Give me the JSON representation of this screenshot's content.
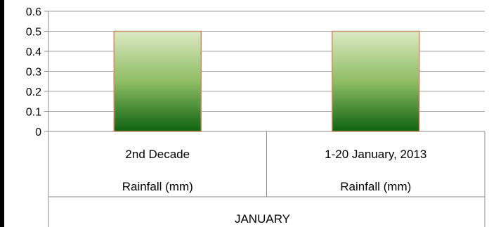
{
  "chart_data": {
    "type": "bar",
    "categories": [
      {
        "label": "2nd Decade",
        "sublabel": "Rainfall (mm)"
      },
      {
        "label": "1-20 January, 2013",
        "sublabel": "Rainfall (mm)"
      }
    ],
    "group_label": "JANUARY",
    "values": [
      0.5,
      0.5
    ],
    "ylim": [
      0,
      0.6
    ],
    "yticks": [
      "0",
      "0.1",
      "0.2",
      "0.3",
      "0.4",
      "0.5",
      "0.6"
    ],
    "grid": true,
    "legend": "none",
    "colors": {
      "bar_top": "#dbe9c2",
      "bar_mid": "#8fbd64",
      "bar_bottom": "#0f6312",
      "bar_border": "#c8906a",
      "gridline": "#a6a6a6",
      "frame": "#8c8c8c"
    }
  }
}
